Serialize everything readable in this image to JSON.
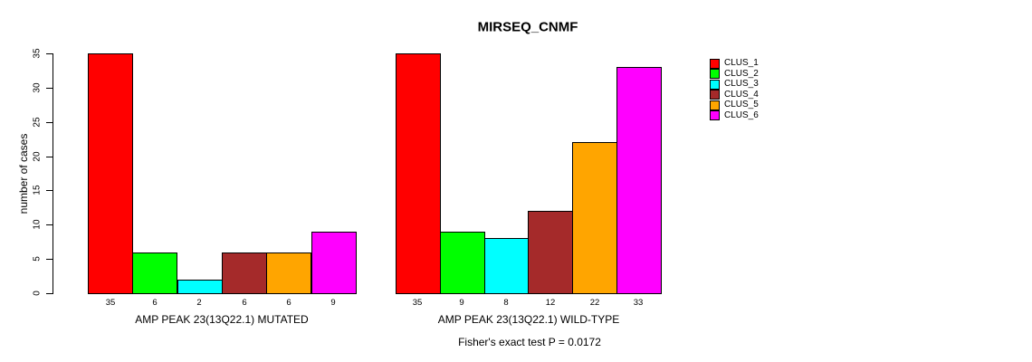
{
  "title": "MIRSEQ_CNMF",
  "footer": "Fisher's exact test P = 0.0172",
  "chart_data": {
    "type": "bar",
    "title": "MIRSEQ_CNMF",
    "ylabel": "number of cases",
    "ylim": [
      0,
      35
    ],
    "yticks": [
      0,
      5,
      10,
      15,
      20,
      25,
      30,
      35
    ],
    "grid": false,
    "legend_position": "top-right",
    "categories": [
      "CLUS_1",
      "CLUS_2",
      "CLUS_3",
      "CLUS_4",
      "CLUS_5",
      "CLUS_6"
    ],
    "colors": [
      "#ff0000",
      "#00ff00",
      "#00ffff",
      "#a52a2a",
      "#ffa500",
      "#ff00ff"
    ],
    "panels": [
      {
        "xlabel": "AMP PEAK 23(13Q22.1) MUTATED",
        "values": [
          35,
          6,
          2,
          6,
          6,
          9
        ]
      },
      {
        "xlabel": "AMP PEAK 23(13Q22.1) WILD-TYPE",
        "values": [
          35,
          9,
          8,
          12,
          22,
          33
        ]
      }
    ],
    "annotation": "Fisher's exact test P = 0.0172"
  }
}
